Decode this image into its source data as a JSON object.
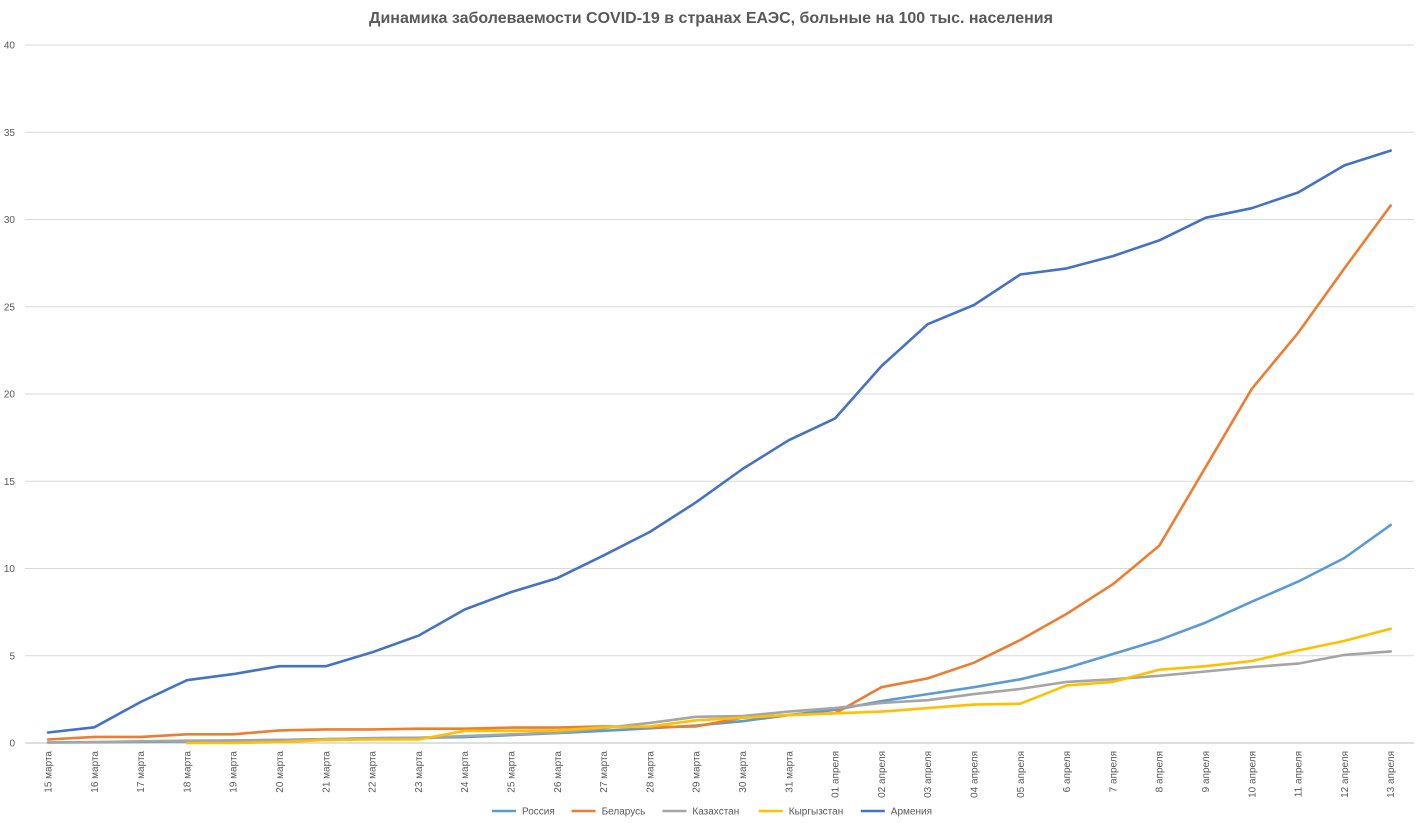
{
  "chart_data": {
    "type": "line",
    "title": "Динамика заболеваемости COVID-19 в странах ЕАЭС, больные на 100 тыс. населения",
    "xlabel": "",
    "ylabel": "",
    "ylim": [
      0,
      40
    ],
    "yticks": [
      0,
      5,
      10,
      15,
      20,
      25,
      30,
      35,
      40
    ],
    "grid": true,
    "legend_position": "bottom",
    "categories": [
      "15 марта",
      "16 марта",
      "17 марта",
      "18 марта",
      "19 марта",
      "20 марта",
      "21 марта",
      "22 марта",
      "23 марта",
      "24 марта",
      "25 марта",
      "26 марта",
      "27 марта",
      "28 марта",
      "29 марта",
      "30 марта",
      "31 марта",
      "01 апреля",
      "02 апреля",
      "03 апреля",
      "04 апреля",
      "05 апреля",
      "6 апреля",
      "7 апреля",
      "8 апреля",
      "9 апреля",
      "10 апреля",
      "11 апреля",
      "12 апреля",
      "13 апреля"
    ],
    "series": [
      {
        "name": "Россия",
        "color": "#5B9BD5",
        "values": [
          0.03,
          0.04,
          0.06,
          0.1,
          0.14,
          0.18,
          0.22,
          0.27,
          0.3,
          0.34,
          0.45,
          0.57,
          0.7,
          0.84,
          1.0,
          1.25,
          1.6,
          1.9,
          2.4,
          2.8,
          3.2,
          3.65,
          4.3,
          5.1,
          5.9,
          6.9,
          8.1,
          9.25,
          10.6,
          12.5
        ]
      },
      {
        "name": "Беларусь",
        "color": "#ED7D31",
        "values": [
          0.2,
          0.35,
          0.35,
          0.5,
          0.5,
          0.72,
          0.78,
          0.78,
          0.82,
          0.82,
          0.88,
          0.88,
          0.95,
          0.9,
          0.95,
          1.45,
          1.6,
          1.7,
          3.2,
          3.7,
          4.6,
          5.9,
          7.4,
          9.1,
          11.3,
          15.8,
          20.3,
          23.5,
          27.2,
          30.8
        ]
      },
      {
        "name": "Казахстан",
        "color": "#A5A5A5",
        "values": [
          0.03,
          0.05,
          0.1,
          0.13,
          0.15,
          0.18,
          0.22,
          0.28,
          0.3,
          0.4,
          0.5,
          0.6,
          0.85,
          1.15,
          1.5,
          1.55,
          1.8,
          2.0,
          2.3,
          2.45,
          2.8,
          3.1,
          3.5,
          3.65,
          3.85,
          4.1,
          4.35,
          4.55,
          5.05,
          5.25
        ]
      },
      {
        "name": "Кыргызстан",
        "color": "#FFC000",
        "values": [
          null,
          null,
          null,
          0.0,
          0.0,
          0.05,
          0.18,
          0.2,
          0.2,
          0.7,
          0.7,
          0.72,
          0.9,
          0.95,
          1.3,
          1.45,
          1.6,
          1.7,
          1.8,
          2.0,
          2.2,
          2.25,
          3.3,
          3.5,
          4.2,
          4.4,
          4.7,
          5.3,
          5.85,
          6.55
        ]
      },
      {
        "name": "Армения",
        "color": "#4472C4",
        "values": [
          0.6,
          0.9,
          2.35,
          3.6,
          3.95,
          4.4,
          4.4,
          5.2,
          6.15,
          7.65,
          8.65,
          9.45,
          10.75,
          12.1,
          13.8,
          15.7,
          17.35,
          18.6,
          21.6,
          24.0,
          25.1,
          26.85,
          27.2,
          27.9,
          28.8,
          30.1,
          30.65,
          31.55,
          33.1,
          33.95
        ]
      }
    ]
  }
}
